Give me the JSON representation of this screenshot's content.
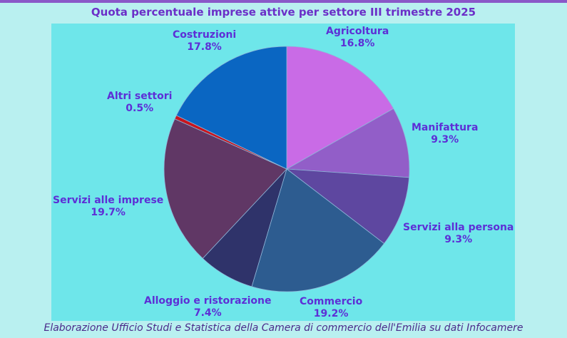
{
  "header": {
    "title": "Quota percentuale imprese attive per settore III trimestre 2025"
  },
  "footer": {
    "source": "Elaborazione Ufficio Studi e Statistica della Camera di commercio dell'Emilia su dati Infocamere"
  },
  "chart_data": {
    "type": "pie",
    "title": "Quota percentuale imprese attive per settore III trimestre 2025",
    "slices": [
      {
        "label": "Agricoltura",
        "value": 16.8,
        "display": "16.8%",
        "color": "#c96be6"
      },
      {
        "label": "Manifattura",
        "value": 9.3,
        "display": "9.3%",
        "color": "#925ec8"
      },
      {
        "label": "Servizi alla persona",
        "value": 9.3,
        "display": "9.3%",
        "color": "#5e47a0"
      },
      {
        "label": "Commercio",
        "value": 19.2,
        "display": "19.2%",
        "color": "#2d5c90"
      },
      {
        "label": "Alloggio e ristorazione",
        "value": 7.4,
        "display": "7.4%",
        "color": "#2f336a"
      },
      {
        "label": "Servizi alle imprese",
        "value": 19.7,
        "display": "19.7%",
        "color": "#603765"
      },
      {
        "label": "Altri settori",
        "value": 0.5,
        "display": "0.5%",
        "color": "#c8151e"
      },
      {
        "label": "Costruzioni",
        "value": 17.8,
        "display": "17.8%",
        "color": "#0a66c2"
      }
    ]
  }
}
